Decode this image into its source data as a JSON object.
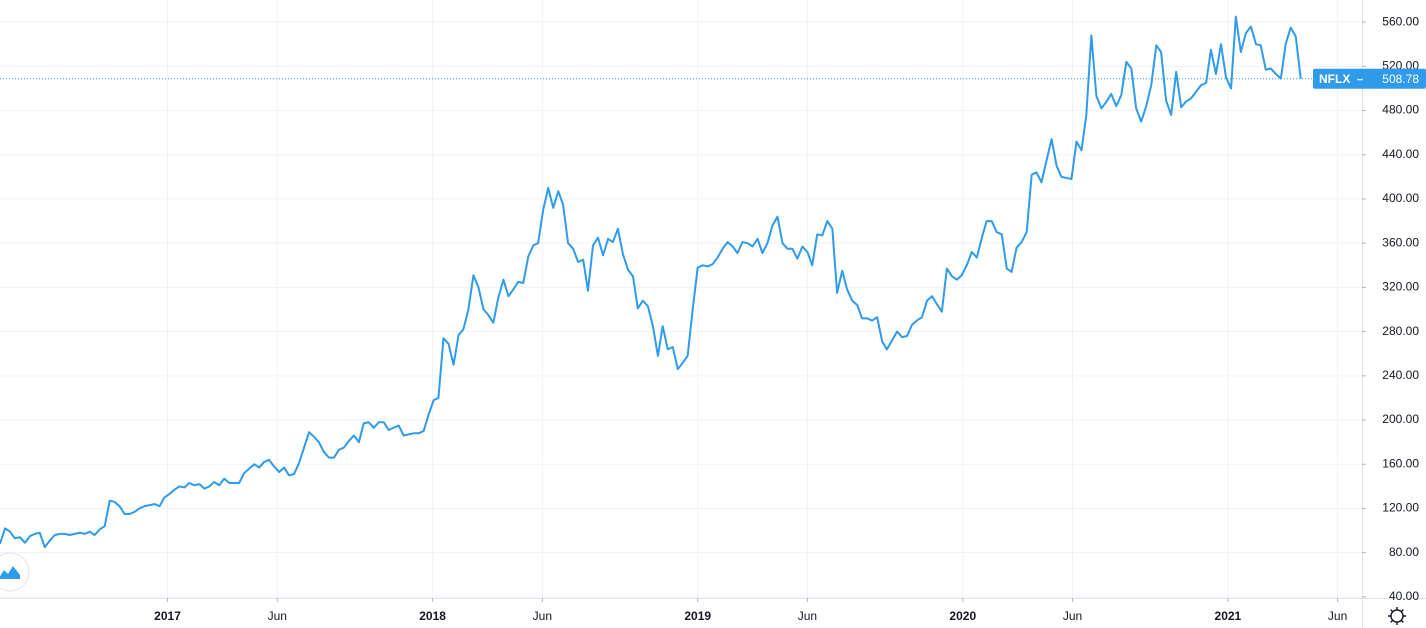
{
  "chart_data": {
    "type": "line",
    "x": [
      2016.368,
      2016.387,
      2016.406,
      2016.424,
      2016.443,
      2016.462,
      2016.481,
      2016.5,
      2016.518,
      2016.537,
      2016.556,
      2016.575,
      2016.594,
      2016.612,
      2016.631,
      2016.65,
      2016.669,
      2016.688,
      2016.706,
      2016.725,
      2016.744,
      2016.763,
      2016.782,
      2016.8,
      2016.819,
      2016.838,
      2016.857,
      2016.876,
      2016.894,
      2016.913,
      2016.932,
      2016.951,
      2016.97,
      2016.988,
      2017.007,
      2017.026,
      2017.045,
      2017.064,
      2017.082,
      2017.101,
      2017.12,
      2017.139,
      2017.158,
      2017.176,
      2017.195,
      2017.214,
      2017.233,
      2017.252,
      2017.27,
      2017.289,
      2017.308,
      2017.327,
      2017.346,
      2017.364,
      2017.383,
      2017.402,
      2017.421,
      2017.44,
      2017.458,
      2017.477,
      2017.496,
      2017.515,
      2017.534,
      2017.552,
      2017.571,
      2017.59,
      2017.609,
      2017.628,
      2017.646,
      2017.665,
      2017.684,
      2017.703,
      2017.722,
      2017.74,
      2017.759,
      2017.778,
      2017.797,
      2017.816,
      2017.834,
      2017.853,
      2017.872,
      2017.891,
      2017.91,
      2017.928,
      2017.947,
      2017.966,
      2017.985,
      2018.004,
      2018.022,
      2018.041,
      2018.06,
      2018.079,
      2018.098,
      2018.116,
      2018.135,
      2018.154,
      2018.173,
      2018.192,
      2018.21,
      2018.229,
      2018.248,
      2018.267,
      2018.286,
      2018.304,
      2018.323,
      2018.342,
      2018.361,
      2018.38,
      2018.398,
      2018.417,
      2018.436,
      2018.455,
      2018.474,
      2018.492,
      2018.511,
      2018.53,
      2018.549,
      2018.568,
      2018.586,
      2018.605,
      2018.624,
      2018.643,
      2018.662,
      2018.68,
      2018.699,
      2018.718,
      2018.737,
      2018.756,
      2018.774,
      2018.793,
      2018.812,
      2018.831,
      2018.85,
      2018.868,
      2018.887,
      2018.906,
      2018.925,
      2018.944,
      2018.962,
      2018.981,
      2019.0,
      2019.019,
      2019.038,
      2019.056,
      2019.075,
      2019.094,
      2019.113,
      2019.132,
      2019.15,
      2019.169,
      2019.188,
      2019.207,
      2019.226,
      2019.244,
      2019.263,
      2019.282,
      2019.301,
      2019.32,
      2019.338,
      2019.357,
      2019.376,
      2019.395,
      2019.414,
      2019.432,
      2019.451,
      2019.47,
      2019.489,
      2019.508,
      2019.526,
      2019.545,
      2019.564,
      2019.583,
      2019.602,
      2019.62,
      2019.639,
      2019.658,
      2019.677,
      2019.696,
      2019.714,
      2019.733,
      2019.752,
      2019.771,
      2019.79,
      2019.808,
      2019.827,
      2019.846,
      2019.865,
      2019.884,
      2019.902,
      2019.921,
      2019.94,
      2019.959,
      2019.978,
      2019.996,
      2020.015,
      2020.034,
      2020.053,
      2020.072,
      2020.09,
      2020.109,
      2020.128,
      2020.147,
      2020.166,
      2020.184,
      2020.203,
      2020.222,
      2020.241,
      2020.26,
      2020.278,
      2020.297,
      2020.316,
      2020.335,
      2020.354,
      2020.372,
      2020.391,
      2020.41,
      2020.429,
      2020.448,
      2020.466,
      2020.485,
      2020.504,
      2020.523,
      2020.542,
      2020.56,
      2020.579,
      2020.598,
      2020.617,
      2020.636,
      2020.654,
      2020.673,
      2020.692,
      2020.711,
      2020.73,
      2020.748,
      2020.767,
      2020.786,
      2020.805,
      2020.824,
      2020.842,
      2020.861,
      2020.88,
      2020.899,
      2020.918,
      2020.936,
      2020.955,
      2020.974,
      2020.993,
      2021.012,
      2021.03,
      2021.049,
      2021.068,
      2021.087,
      2021.106,
      2021.124,
      2021.143,
      2021.162,
      2021.181,
      2021.2,
      2021.218,
      2021.237,
      2021.256,
      2021.275
    ],
    "series": [
      {
        "name": "NFLX",
        "color": "#2f9bea",
        "values": [
          88,
          102,
          99,
          93,
          94,
          89,
          95,
          97,
          98,
          85,
          91,
          96,
          97,
          97,
          96,
          97,
          98,
          97,
          99,
          96,
          101,
          104,
          127,
          126,
          122,
          115,
          115,
          117,
          120,
          122,
          123,
          124,
          122,
          130,
          133,
          137,
          140,
          139,
          143,
          141,
          142,
          138,
          140,
          144,
          141,
          147,
          143,
          143,
          143,
          152,
          156,
          160,
          157,
          162,
          164,
          158,
          153,
          157,
          150,
          151,
          161,
          175,
          189,
          185,
          180,
          171,
          166,
          166,
          173,
          175,
          181,
          186,
          180,
          197,
          198,
          193,
          198,
          198,
          191,
          193,
          195,
          186,
          187,
          188,
          188,
          190,
          205,
          218,
          220,
          274,
          269,
          250,
          277,
          282,
          300,
          331,
          320,
          300,
          295,
          288,
          311,
          327,
          312,
          318,
          325,
          324,
          348,
          358,
          360,
          390,
          410,
          392,
          407,
          395,
          360,
          355,
          343,
          345,
          317,
          358,
          365,
          349,
          364,
          361,
          373,
          350,
          336,
          330,
          301,
          308,
          303,
          285,
          258,
          285,
          264,
          266,
          246,
          252,
          258,
          300,
          338,
          340,
          339,
          341,
          347,
          355,
          361,
          357,
          351,
          361,
          360,
          357,
          364,
          351,
          360,
          376,
          384,
          360,
          355,
          355,
          346,
          357,
          352,
          340,
          368,
          367,
          380,
          373,
          315,
          335,
          318,
          308,
          304,
          292,
          292,
          290,
          293,
          271,
          264,
          272,
          280,
          275,
          276,
          286,
          290,
          293,
          308,
          312,
          305,
          298,
          337,
          330,
          327,
          331,
          340,
          352,
          347,
          365,
          380,
          380,
          370,
          368,
          337,
          334,
          356,
          361,
          370,
          422,
          424,
          415,
          435,
          454,
          430,
          420,
          419,
          418,
          452,
          444,
          476,
          548,
          493,
          482,
          488,
          495,
          484,
          494,
          524,
          518,
          482,
          470,
          484,
          503,
          539,
          533,
          489,
          476,
          515,
          483,
          488,
          491,
          497,
          503,
          505,
          535,
          513,
          540,
          510,
          500,
          565,
          533,
          550,
          556,
          540,
          539,
          517,
          518,
          513,
          509,
          540,
          555,
          547,
          508.78
        ]
      }
    ],
    "xlim": [
      2016.368,
      2021.506
    ],
    "xticks": [
      {
        "value": 2017,
        "label": "2017"
      },
      {
        "value": 2017.414,
        "label": "Jun"
      },
      {
        "value": 2018,
        "label": "2018"
      },
      {
        "value": 2018.414,
        "label": "Jun"
      },
      {
        "value": 2019,
        "label": "2019"
      },
      {
        "value": 2019.414,
        "label": "Jun"
      },
      {
        "value": 2020,
        "label": "2020"
      },
      {
        "value": 2020.414,
        "label": "Jun"
      },
      {
        "value": 2021,
        "label": "2021"
      },
      {
        "value": 2021.414,
        "label": "Jun"
      }
    ],
    "ylim": [
      39,
      580
    ],
    "yticks": [
      {
        "value": 40,
        "label": "40.00"
      },
      {
        "value": 80,
        "label": "80.00"
      },
      {
        "value": 120,
        "label": "120.00"
      },
      {
        "value": 160,
        "label": "160.00"
      },
      {
        "value": 200,
        "label": "200.00"
      },
      {
        "value": 240,
        "label": "240.00"
      },
      {
        "value": 280,
        "label": "280.00"
      },
      {
        "value": 320,
        "label": "320.00"
      },
      {
        "value": 360,
        "label": "360.00"
      },
      {
        "value": 400,
        "label": "400.00"
      },
      {
        "value": 440,
        "label": "440.00"
      },
      {
        "value": 480,
        "label": "480.00"
      },
      {
        "value": 520,
        "label": "520.00"
      },
      {
        "value": 560,
        "label": "560.00"
      }
    ],
    "grid": true
  }
}
